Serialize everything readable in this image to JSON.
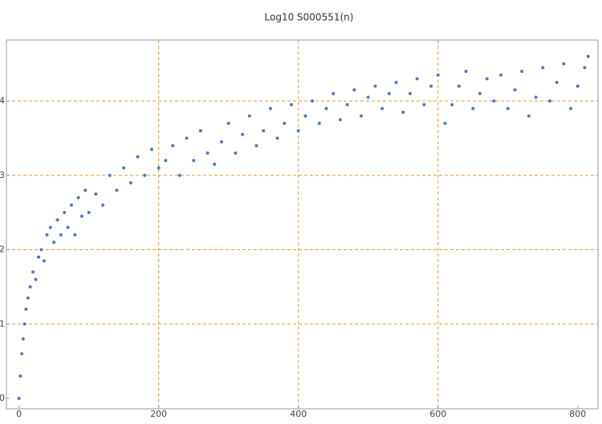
{
  "chart_data": {
    "type": "scatter",
    "title": "Log10 S000551(n)",
    "x": [
      0,
      2,
      4,
      6,
      8,
      10,
      13,
      16,
      20,
      24,
      28,
      32,
      36,
      40,
      45,
      50,
      55,
      60,
      65,
      70,
      75,
      80,
      85,
      90,
      95,
      100,
      110,
      120,
      130,
      140,
      150,
      160,
      170,
      180,
      190,
      200,
      210,
      220,
      230,
      240,
      250,
      260,
      270,
      280,
      290,
      300,
      310,
      320,
      330,
      340,
      350,
      360,
      370,
      380,
      390,
      400,
      410,
      420,
      430,
      440,
      450,
      460,
      470,
      480,
      490,
      500,
      510,
      520,
      530,
      540,
      550,
      560,
      570,
      580,
      590,
      600,
      610,
      620,
      630,
      640,
      650,
      660,
      670,
      680,
      690,
      700,
      710,
      720,
      730,
      740,
      750,
      760,
      770,
      780,
      790,
      800,
      810,
      815
    ],
    "values": [
      0,
      0.3,
      0.6,
      0.8,
      1.0,
      1.2,
      1.35,
      1.5,
      1.7,
      1.6,
      1.9,
      2.0,
      1.85,
      2.2,
      2.3,
      2.1,
      2.4,
      2.2,
      2.5,
      2.3,
      2.6,
      2.2,
      2.7,
      2.45,
      2.8,
      2.5,
      2.75,
      2.6,
      3.0,
      2.8,
      3.1,
      2.9,
      3.25,
      3.0,
      3.35,
      3.1,
      3.2,
      3.4,
      3.0,
      3.5,
      3.2,
      3.6,
      3.3,
      3.15,
      3.45,
      3.7,
      3.3,
      3.55,
      3.8,
      3.4,
      3.6,
      3.9,
      3.5,
      3.7,
      3.95,
      3.6,
      3.8,
      4.0,
      3.7,
      3.9,
      4.1,
      3.75,
      3.95,
      4.15,
      3.8,
      4.05,
      4.2,
      3.9,
      4.1,
      4.25,
      3.85,
      4.1,
      4.3,
      3.95,
      4.2,
      4.35,
      3.7,
      3.95,
      4.2,
      4.4,
      3.9,
      4.1,
      4.3,
      4.0,
      4.35,
      3.9,
      4.15,
      4.4,
      3.8,
      4.05,
      4.45,
      4.0,
      4.25,
      4.5,
      3.9,
      4.2,
      4.45,
      4.6
    ],
    "color": "#5577b8",
    "xlim": [
      -18,
      829
    ],
    "ylim": [
      -0.14,
      4.82
    ],
    "xticks": [
      0,
      200,
      400,
      600,
      800
    ],
    "yticks": [
      0,
      1,
      2,
      3,
      4
    ],
    "grid_x": [
      200,
      400,
      600
    ],
    "grid_y": [
      1,
      2,
      3,
      4
    ],
    "grid_color": "#e8963a"
  }
}
